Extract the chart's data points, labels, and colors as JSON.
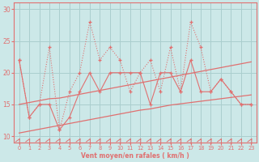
{
  "xlabel": "Vent moyen/en rafales ( km/h )",
  "xlim": [
    -0.5,
    23.5
  ],
  "ylim": [
    9,
    31
  ],
  "yticks": [
    10,
    15,
    20,
    25,
    30
  ],
  "xticks": [
    0,
    1,
    2,
    3,
    4,
    5,
    6,
    7,
    8,
    9,
    10,
    11,
    12,
    13,
    14,
    15,
    16,
    17,
    18,
    19,
    20,
    21,
    22,
    23
  ],
  "background_color": "#cce8e8",
  "grid_color": "#aacece",
  "line_color": "#e07070",
  "hours": [
    0,
    1,
    2,
    3,
    4,
    5,
    6,
    7,
    8,
    9,
    10,
    11,
    12,
    13,
    14,
    15,
    16,
    17,
    18,
    19,
    20,
    21,
    22,
    23
  ],
  "rafales": [
    22,
    13,
    15,
    24,
    11,
    17,
    20,
    28,
    22,
    24,
    22,
    17,
    20,
    22,
    17,
    24,
    17,
    28,
    24,
    17,
    19,
    17,
    15,
    15
  ],
  "moyen": [
    22,
    13,
    15,
    15,
    11,
    13,
    17,
    20,
    17,
    20,
    20,
    20,
    20,
    15,
    20,
    20,
    17,
    22,
    17,
    17,
    19,
    17,
    15,
    15
  ],
  "trend_upper": [
    15.0,
    15.3,
    15.6,
    15.9,
    16.0,
    16.3,
    16.6,
    16.9,
    17.2,
    17.5,
    17.8,
    18.1,
    18.4,
    18.7,
    19.0,
    19.3,
    19.6,
    19.9,
    20.2,
    20.5,
    20.8,
    21.1,
    21.4,
    21.7
  ],
  "trend_lower": [
    10.5,
    10.8,
    11.1,
    11.4,
    11.7,
    12.0,
    12.3,
    12.6,
    12.9,
    13.2,
    13.5,
    13.8,
    14.1,
    14.3,
    14.6,
    14.9,
    15.1,
    15.3,
    15.5,
    15.7,
    15.9,
    16.1,
    16.3,
    16.5
  ]
}
